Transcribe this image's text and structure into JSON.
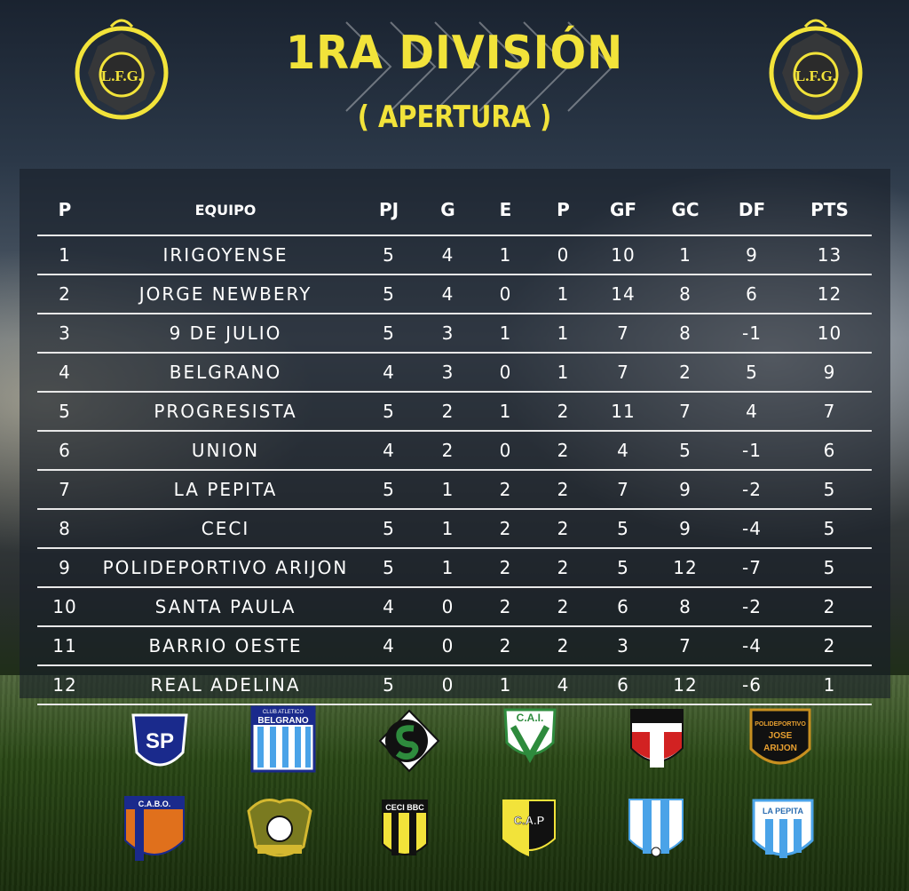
{
  "header": {
    "title": "1RA DIVISIÓN",
    "subtitle": "( APERTURA )",
    "logo_text": "L.F.G."
  },
  "colors": {
    "accent": "#f2e33a",
    "panel": "#1e2430",
    "text": "#ffffff"
  },
  "table": {
    "columns": [
      "P",
      "EQUIPO",
      "PJ",
      "G",
      "E",
      "P",
      "GF",
      "GC",
      "DF",
      "PTS"
    ],
    "rows": [
      [
        "1",
        "IRIGOYENSE",
        "5",
        "4",
        "1",
        "0",
        "10",
        "1",
        "9",
        "13"
      ],
      [
        "2",
        "JORGE NEWBERY",
        "5",
        "4",
        "0",
        "1",
        "14",
        "8",
        "6",
        "12"
      ],
      [
        "3",
        "9 DE JULIO",
        "5",
        "3",
        "1",
        "1",
        "7",
        "8",
        "-1",
        "10"
      ],
      [
        "4",
        "BELGRANO",
        "4",
        "3",
        "0",
        "1",
        "7",
        "2",
        "5",
        "9"
      ],
      [
        "5",
        "PROGRESISTA",
        "5",
        "2",
        "1",
        "2",
        "11",
        "7",
        "4",
        "7"
      ],
      [
        "6",
        "UNION",
        "4",
        "2",
        "0",
        "2",
        "4",
        "5",
        "-1",
        "6"
      ],
      [
        "7",
        "LA PEPITA",
        "5",
        "1",
        "2",
        "2",
        "7",
        "9",
        "-2",
        "5"
      ],
      [
        "8",
        "CECI",
        "5",
        "1",
        "2",
        "2",
        "5",
        "9",
        "-4",
        "5"
      ],
      [
        "9",
        "POLIDEPORTIVO ARIJON",
        "5",
        "1",
        "2",
        "2",
        "5",
        "12",
        "-7",
        "5"
      ],
      [
        "10",
        "SANTA PAULA",
        "4",
        "0",
        "2",
        "2",
        "6",
        "8",
        "-2",
        "2"
      ],
      [
        "11",
        "BARRIO OESTE",
        "4",
        "0",
        "2",
        "2",
        "3",
        "7",
        "-4",
        "2"
      ],
      [
        "12",
        "REAL ADELINA",
        "5",
        "0",
        "1",
        "4",
        "6",
        "12",
        "-6",
        "1"
      ]
    ]
  },
  "crests": {
    "sp": "SP",
    "belgrano_top": "CLUB ATLETICO",
    "belgrano": "BELGRANO",
    "cai": "C.A.I.",
    "poli_1": "POLIDEPORTIVO",
    "poli_2": "JOSE",
    "poli_3": "ARIJON",
    "cabo": "C.A.B.O.",
    "ceci": "CECI BBC",
    "cap": "C.A.P",
    "lapepita": "LA PEPITA"
  }
}
